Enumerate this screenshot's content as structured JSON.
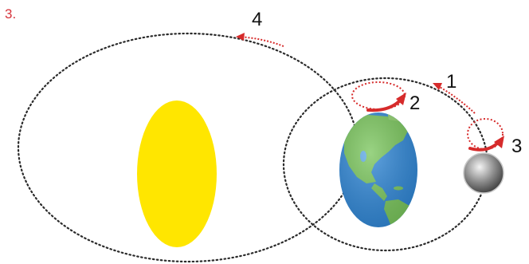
{
  "question": {
    "number": "3."
  },
  "labels": {
    "l1": "1",
    "l2": "2",
    "l3": "3",
    "l4": "4"
  },
  "colors": {
    "orbit": "#2b2b2b",
    "arrow": "#d62b2b",
    "sun": "#ffe600",
    "ocean": "#2e86d6",
    "land": "#78c55a",
    "moon": "#7d7d7d",
    "qnum": "#d6333b"
  },
  "icons": {
    "sun": "sun-ellipse",
    "earth": "earth-globe",
    "moon": "moon-sphere"
  }
}
